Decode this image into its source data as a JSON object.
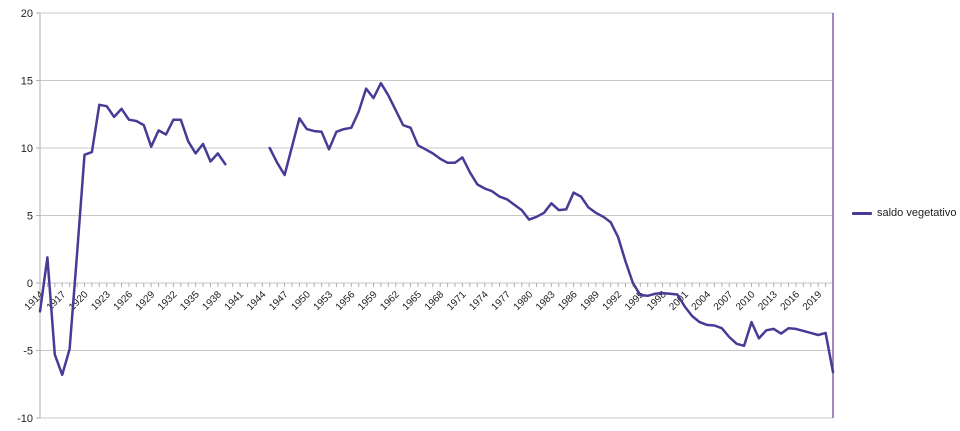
{
  "legend": {
    "label": "saldo vegetativo"
  },
  "colors": {
    "series": "#463C96",
    "plot_right_border": "#8A5FA8",
    "gridline": "#C8C8C8",
    "axis": "#AFAFAF",
    "text": "#222222",
    "background": "#FFFFFF"
  },
  "chart_data": {
    "type": "line",
    "title": "",
    "xlabel": "",
    "ylabel": "",
    "ylim": [
      -10,
      20
    ],
    "yticks": [
      20,
      15,
      10,
      5,
      0,
      -5,
      -10
    ],
    "grid": "horizontal",
    "legend_position": "right",
    "xtick_label_years": [
      1914,
      1917,
      1920,
      1923,
      1926,
      1929,
      1932,
      1935,
      1938,
      1941,
      1944,
      1947,
      1950,
      1953,
      1956,
      1959,
      1962,
      1965,
      1968,
      1971,
      1974,
      1977,
      1980,
      1983,
      1986,
      1989,
      1992,
      1995,
      1998,
      2001,
      2004,
      2007,
      2010,
      2013,
      2016,
      2019
    ],
    "note_gap_years": "no data 1940-1944",
    "series": [
      {
        "name": "saldo vegetativo",
        "color": "#463C96",
        "x": [
          1914,
          1915,
          1916,
          1917,
          1918,
          1919,
          1920,
          1921,
          1922,
          1923,
          1924,
          1925,
          1926,
          1927,
          1928,
          1929,
          1930,
          1931,
          1932,
          1933,
          1934,
          1935,
          1936,
          1937,
          1938,
          1939,
          1940,
          1941,
          1942,
          1943,
          1944,
          1945,
          1946,
          1947,
          1948,
          1949,
          1950,
          1951,
          1952,
          1953,
          1954,
          1955,
          1956,
          1957,
          1958,
          1959,
          1960,
          1961,
          1962,
          1963,
          1964,
          1965,
          1966,
          1967,
          1968,
          1969,
          1970,
          1971,
          1972,
          1973,
          1974,
          1975,
          1976,
          1977,
          1978,
          1979,
          1980,
          1981,
          1982,
          1983,
          1984,
          1985,
          1986,
          1987,
          1988,
          1989,
          1990,
          1991,
          1992,
          1993,
          1994,
          1995,
          1996,
          1997,
          1998,
          1999,
          2000,
          2001,
          2002,
          2003,
          2004,
          2005,
          2006,
          2007,
          2008,
          2009,
          2010,
          2011,
          2012,
          2013,
          2014,
          2015,
          2016,
          2017,
          2018,
          2019,
          2020,
          2021
        ],
        "values": [
          -2.1,
          1.9,
          -5.3,
          -6.8,
          -4.9,
          2.2,
          9.5,
          9.7,
          13.2,
          13.1,
          12.3,
          12.9,
          12.1,
          12.0,
          11.7,
          10.1,
          11.3,
          11.0,
          12.1,
          12.1,
          10.5,
          9.6,
          10.3,
          9.0,
          9.6,
          8.8,
          null,
          null,
          null,
          null,
          null,
          10.0,
          8.9,
          8.0,
          10.1,
          12.2,
          11.4,
          11.25,
          11.2,
          9.9,
          11.2,
          11.4,
          11.5,
          12.7,
          14.4,
          13.7,
          14.8,
          13.9,
          12.8,
          11.7,
          11.5,
          10.2,
          9.9,
          9.6,
          9.2,
          8.9,
          8.9,
          9.3,
          8.2,
          7.3,
          7.0,
          6.8,
          6.4,
          6.2,
          5.8,
          5.4,
          4.7,
          4.9,
          5.2,
          5.9,
          5.4,
          5.45,
          6.7,
          6.4,
          5.6,
          5.2,
          4.9,
          4.5,
          3.4,
          1.6,
          0.0,
          -0.9,
          -0.95,
          -0.8,
          -0.75,
          -0.8,
          -0.85,
          -1.75,
          -2.45,
          -2.9,
          -3.1,
          -3.15,
          -3.35,
          -4.0,
          -4.5,
          -4.65,
          -2.9,
          -4.1,
          -3.5,
          -3.4,
          -3.75,
          -3.35,
          -3.4,
          -3.55,
          -3.7,
          -3.85,
          -3.7,
          -6.6
        ]
      }
    ]
  }
}
